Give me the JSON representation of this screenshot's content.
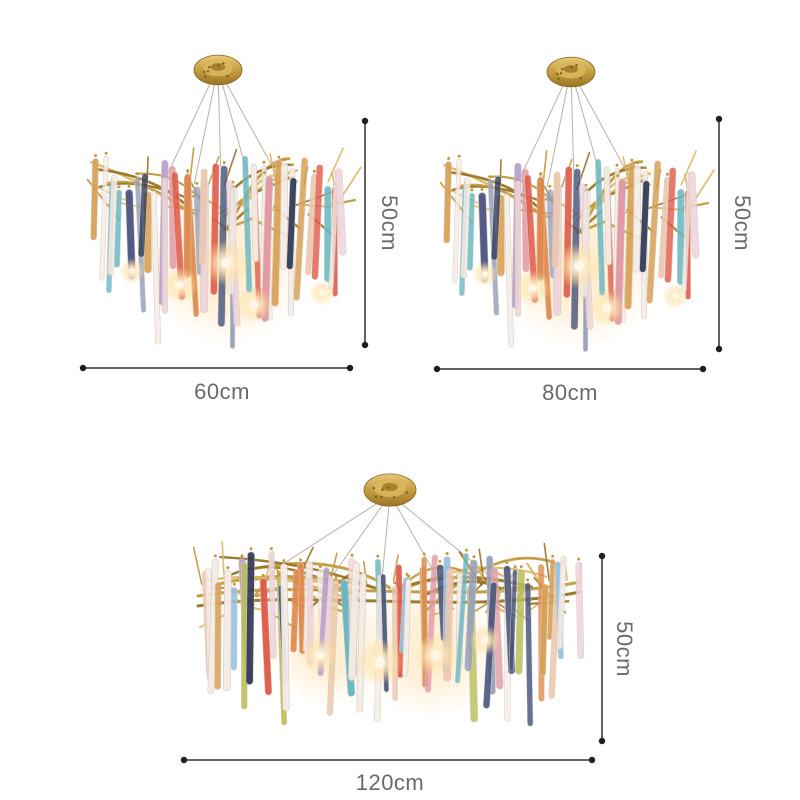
{
  "figures": [
    {
      "name": "chandelier-60cm",
      "type": "round",
      "width_label": "60cm",
      "height_label": "50cm"
    },
    {
      "name": "chandelier-80cm",
      "type": "round",
      "width_label": "80cm",
      "height_label": "50cm"
    },
    {
      "name": "chandelier-120cm",
      "type": "linear",
      "width_label": "120cm",
      "height_label": "50cm"
    }
  ],
  "style": {
    "background": "#ffffff",
    "dimension_line_color": "#2d2d2d",
    "dimension_dot_color": "#1e1e1e",
    "label_color": "#6a6a6a",
    "gold": "#c19a3e",
    "gold_light": "#dcb765",
    "gold_dark": "#9a7424",
    "wire_color": "#b9b2a6",
    "glow_color": "#ffdb9e",
    "crystal_palette": [
      "#f4ece6",
      "#eed4dc",
      "#eec8ac",
      "#e29aa6",
      "#e15a49",
      "#46537c",
      "#2f3a55",
      "#93a0bd",
      "#64b9c5",
      "#8fc3e6",
      "#b5a0cd",
      "#d9a153",
      "#b9bf55",
      "#e0894a"
    ]
  }
}
